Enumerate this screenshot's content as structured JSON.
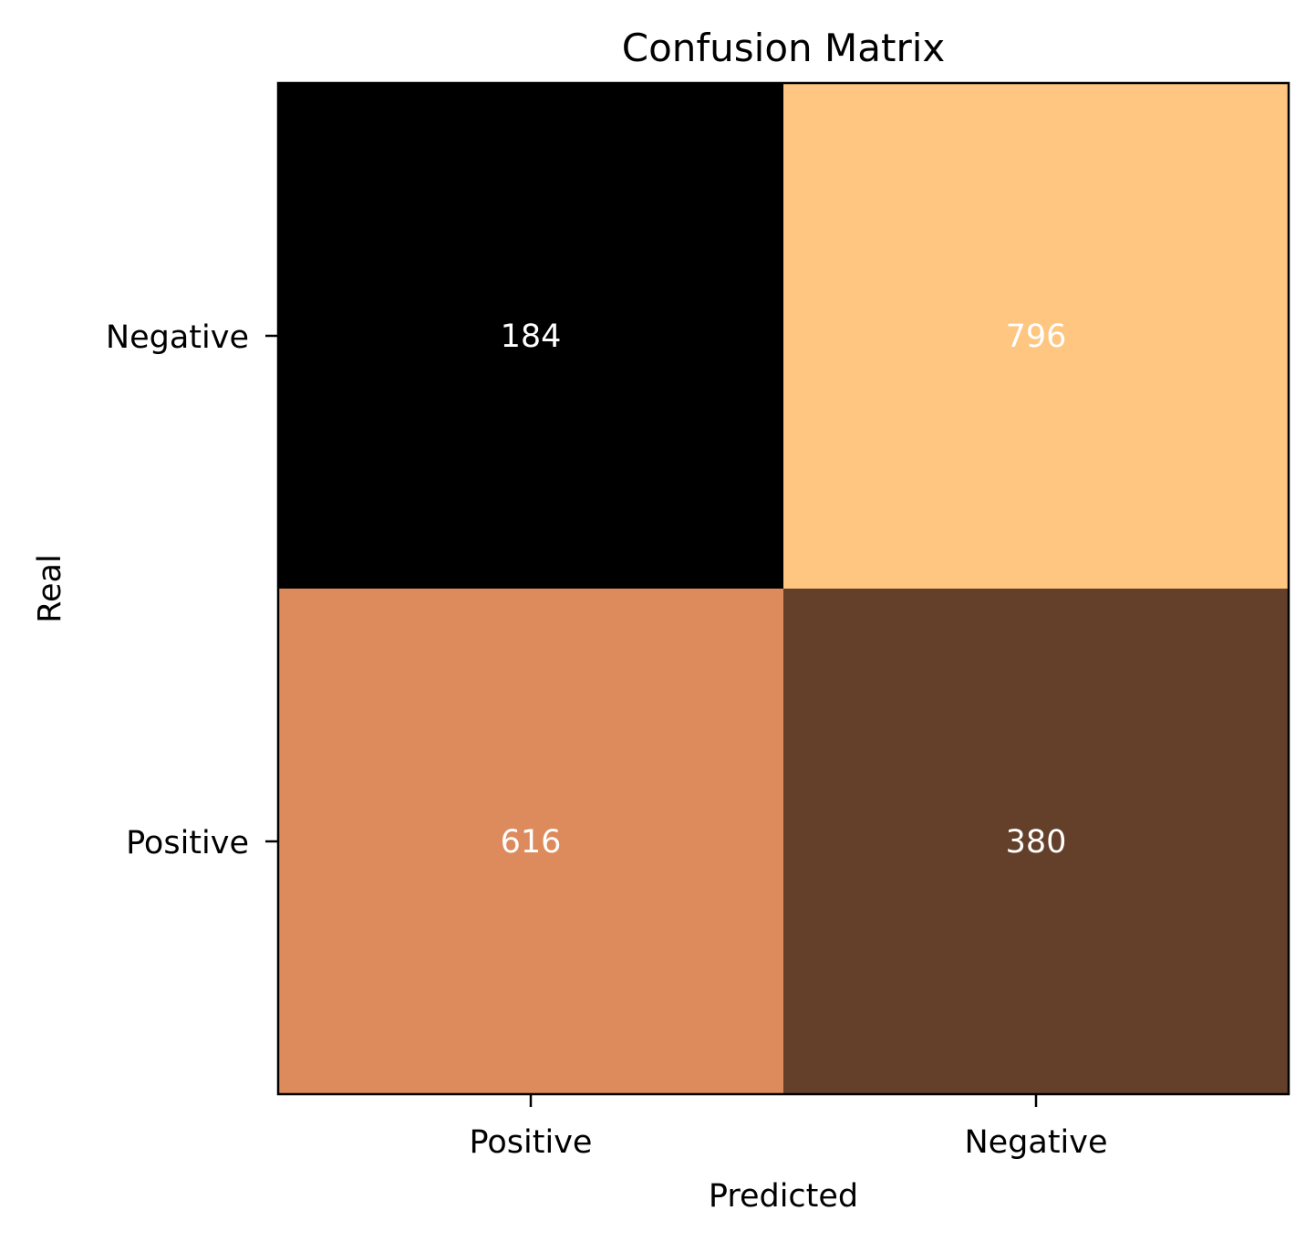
{
  "chart_data": {
    "type": "heatmap",
    "title": "Confusion Matrix",
    "xlabel": "Predicted",
    "ylabel": "Real",
    "x_categories": [
      "Positive",
      "Negative"
    ],
    "y_categories": [
      "Negative",
      "Positive"
    ],
    "values": [
      [
        184,
        796
      ],
      [
        616,
        380
      ]
    ],
    "value_range": [
      184,
      796
    ],
    "colormap": "copper",
    "cell_colors": [
      [
        "#000000",
        "#fec680"
      ],
      [
        "#dd8b5c",
        "#643f29"
      ]
    ],
    "cell_text_color": "#ffffff",
    "grid": false,
    "colorbar": false
  }
}
